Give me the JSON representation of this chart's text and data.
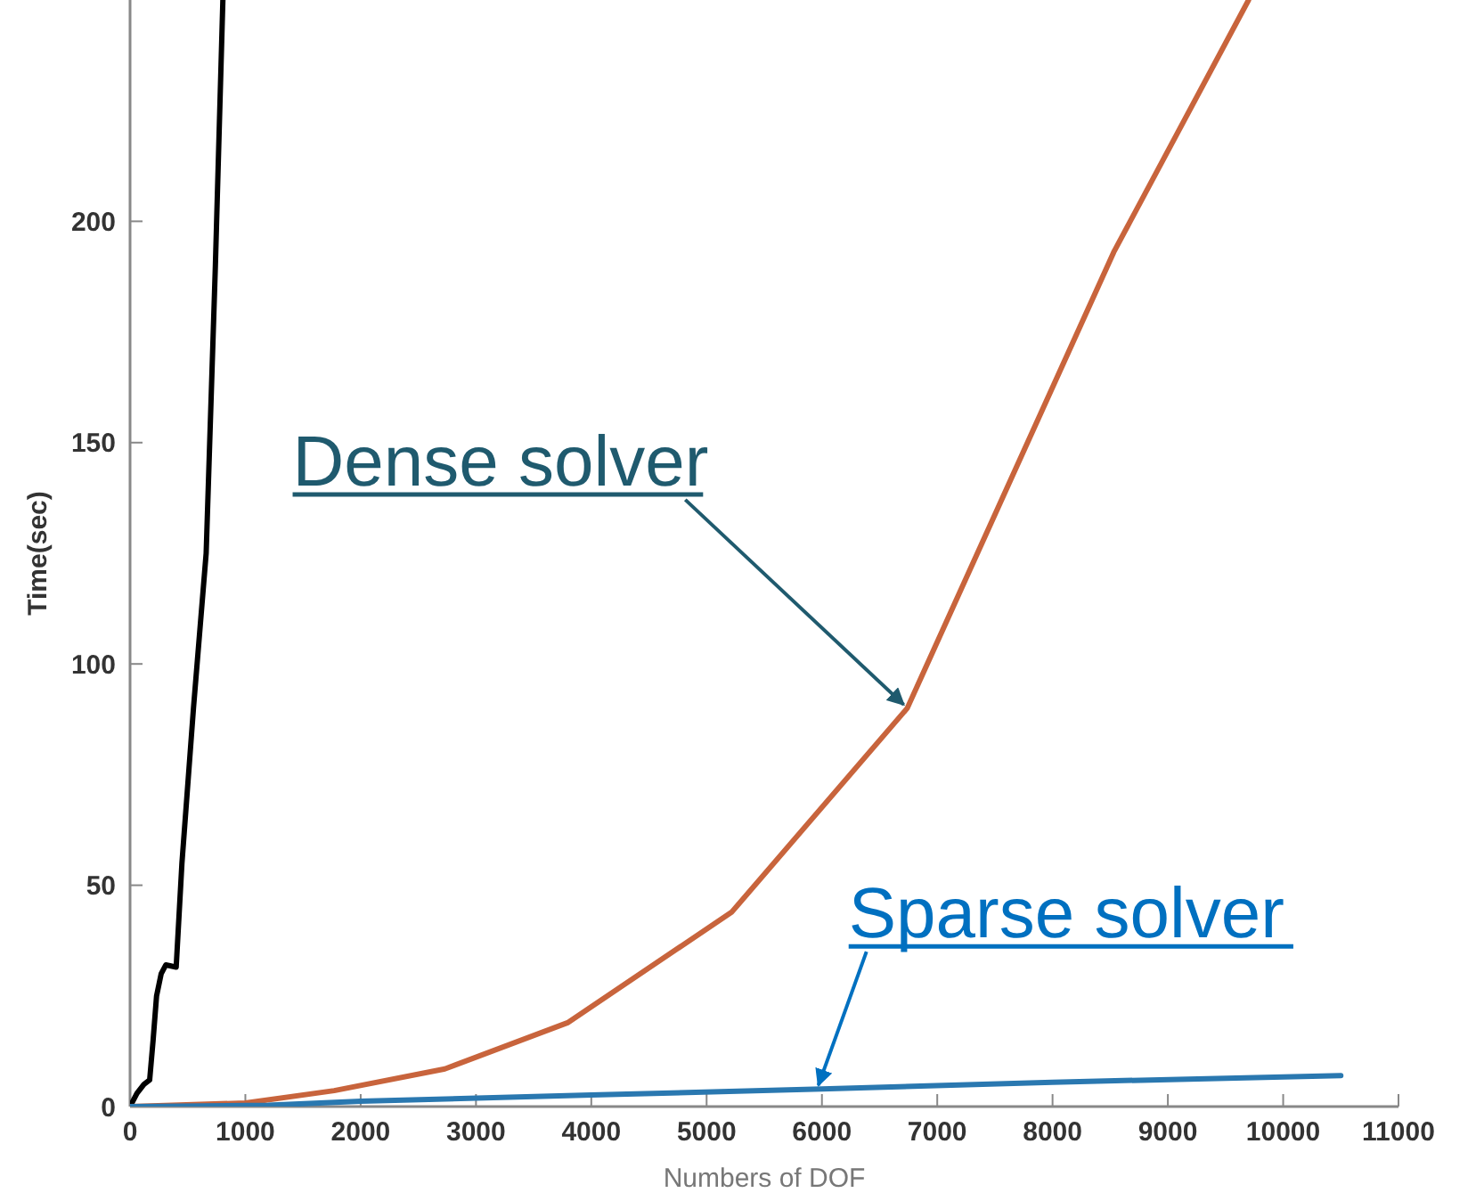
{
  "chart_data": {
    "type": "line",
    "xlabel": "Numbers of DOF",
    "ylabel": "Time(sec)",
    "xlim": [
      0,
      11000
    ],
    "ylim": [
      0,
      250
    ],
    "xticks": [
      0,
      1000,
      2000,
      3000,
      4000,
      5000,
      6000,
      7000,
      8000,
      9000,
      10000,
      11000
    ],
    "yticks": [
      0,
      50,
      100,
      150,
      200
    ],
    "grid": false,
    "marker": "none",
    "line_style": "solid",
    "series": [
      {
        "color": "#000000",
        "x": [
          0,
          60,
          120,
          170,
          200,
          230,
          270,
          310,
          400,
          450,
          550,
          660,
          740,
          805
        ],
        "values": [
          0,
          3,
          5,
          6,
          15,
          25,
          30,
          32,
          31.5,
          55,
          90,
          125,
          190,
          250
        ]
      },
      {
        "color": "#c8643c",
        "x": [
          0,
          1000,
          1770,
          2730,
          3800,
          5220,
          6740,
          8530,
          9700
        ],
        "values": [
          0,
          0.8,
          3.6,
          8.5,
          19,
          44,
          90,
          193,
          250
        ]
      },
      {
        "color": "#2a78b0",
        "x": [
          0,
          1200,
          2000,
          4000,
          6000,
          8000,
          10500
        ],
        "values": [
          0,
          0.3,
          1.2,
          2.6,
          4,
          5.5,
          7
        ]
      }
    ],
    "annotations": [
      {
        "text": "Dense solver",
        "x": 6740,
        "y": 90
      },
      {
        "text": "Sparse solver",
        "x": 6000,
        "y": 4
      }
    ]
  }
}
